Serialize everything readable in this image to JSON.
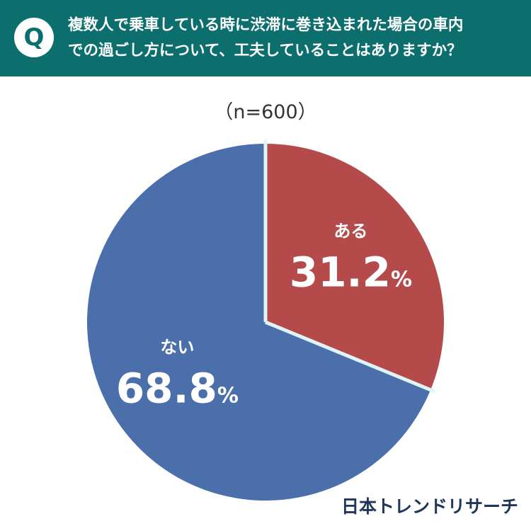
{
  "header": {
    "badge": "Q",
    "question_line1": "複数人で乗車している時に渋滞に巻き込まれた場合の車内",
    "question_line2": "での過ごし方について、工夫していることはありますか？"
  },
  "sample_size": "（n=600）",
  "brand": "日本トレンドリサーチ",
  "chart_data": {
    "type": "pie",
    "slices": [
      {
        "label": "ある",
        "value": 31.2,
        "display": "31.2",
        "color": "#b54a4a"
      },
      {
        "label": "ない",
        "value": 68.8,
        "display": "68.8",
        "color": "#4a6fab"
      }
    ],
    "unit": "%"
  }
}
